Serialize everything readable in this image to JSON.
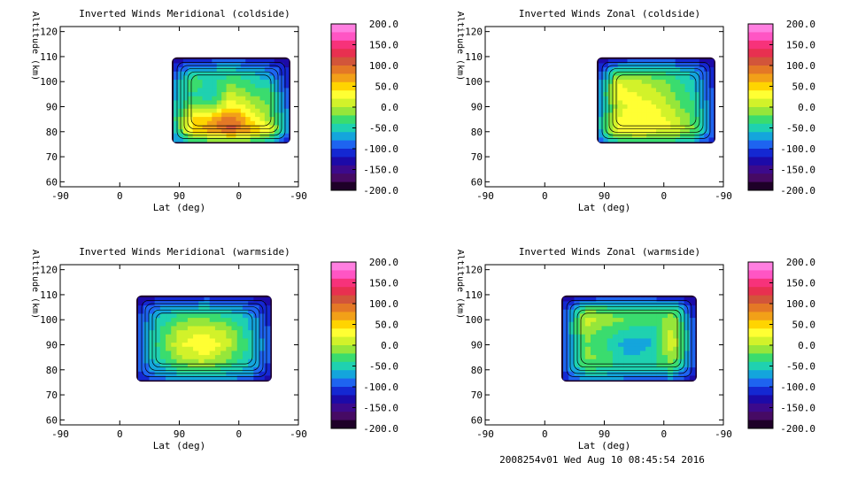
{
  "footer_text": "2008254v01 Wed Aug 10 08:45:54 2016",
  "colorbar": {
    "tick_labels": [
      "200.0",
      "150.0",
      "100.0",
      "50.0",
      "0.0",
      "-50.0",
      "-100.0",
      "-150.0",
      "-200.0"
    ],
    "tick_values": [
      200,
      150,
      100,
      50,
      0,
      -50,
      -100,
      -150,
      -200
    ],
    "range": [
      -200,
      200
    ],
    "colors_top_to_bottom": [
      "#ff7fe0",
      "#ff55c4",
      "#f7327a",
      "#e83050",
      "#d2553a",
      "#e47826",
      "#f2a018",
      "#ffd400",
      "#ffff33",
      "#d2f22a",
      "#96e63a",
      "#3adc6e",
      "#1fd1b0",
      "#14a5dc",
      "#1e64f0",
      "#1428d2",
      "#1c0aa8",
      "#3c0a8c",
      "#460a64",
      "#1e0028"
    ]
  },
  "chart_data": [
    {
      "type": "heatmap",
      "title": "Inverted Winds Meridional (coldside)",
      "xlabel": "Lat (deg)",
      "ylabel": "Altitude (km)",
      "x_tick_labels": [
        "-90",
        "0",
        "90",
        "0",
        "-90"
      ],
      "y_tick_labels": [
        "60",
        "70",
        "80",
        "90",
        "100",
        "110",
        "120"
      ],
      "ylim": [
        58,
        122
      ],
      "data_extent": {
        "x": [
          128,
          178
        ],
        "y": [
          76,
          109
        ]
      },
      "field": [
        [
          -140,
          -120,
          -110,
          -100,
          -110,
          -120,
          -140
        ],
        [
          -100,
          -60,
          -55,
          -50,
          -60,
          -80,
          -120
        ],
        [
          -80,
          -20,
          -50,
          -20,
          -40,
          -60,
          -110
        ],
        [
          -70,
          -40,
          -60,
          10,
          -20,
          -30,
          -100
        ],
        [
          -60,
          -10,
          -20,
          40,
          10,
          -20,
          -90
        ],
        [
          -50,
          40,
          60,
          100,
          40,
          -10,
          -80
        ],
        [
          -60,
          50,
          80,
          110,
          70,
          30,
          -90
        ],
        [
          -90,
          -40,
          -40,
          -30,
          -40,
          -60,
          -120
        ]
      ]
    },
    {
      "type": "heatmap",
      "title": "Inverted Winds Zonal (coldside)",
      "xlabel": "Lat (deg)",
      "ylabel": "Altitude (km)",
      "x_tick_labels": [
        "-90",
        "0",
        "90",
        "0",
        "-90"
      ],
      "y_tick_labels": [
        "60",
        "70",
        "80",
        "90",
        "100",
        "110",
        "120"
      ],
      "ylim": [
        58,
        122
      ],
      "data_extent": {
        "x": [
          128,
          178
        ],
        "y": [
          76,
          109
        ]
      },
      "field": [
        [
          -140,
          -120,
          -110,
          -110,
          -110,
          -120,
          -140
        ],
        [
          -110,
          -40,
          -30,
          -40,
          -50,
          -70,
          -120
        ],
        [
          -90,
          20,
          10,
          -10,
          -30,
          -60,
          -110
        ],
        [
          -80,
          30,
          20,
          10,
          -20,
          -50,
          -100
        ],
        [
          -80,
          10,
          30,
          20,
          -10,
          -40,
          -100
        ],
        [
          -70,
          20,
          40,
          30,
          10,
          -30,
          -90
        ],
        [
          -70,
          30,
          40,
          30,
          20,
          -20,
          -90
        ],
        [
          -100,
          -50,
          -40,
          -40,
          -50,
          -70,
          -120
        ]
      ]
    },
    {
      "type": "heatmap",
      "title": "Inverted Winds Meridional (warmside)",
      "xlabel": "Lat (deg)",
      "ylabel": "Altitude (km)",
      "x_tick_labels": [
        "-90",
        "0",
        "90",
        "0",
        "-90"
      ],
      "y_tick_labels": [
        "60",
        "70",
        "80",
        "90",
        "100",
        "110",
        "120"
      ],
      "ylim": [
        58,
        122
      ],
      "data_extent": {
        "x": [
          88,
          157
        ],
        "y": [
          76,
          109
        ]
      },
      "field": [
        [
          -140,
          -120,
          -120,
          -110,
          -110,
          -120,
          -140
        ],
        [
          -110,
          -70,
          -60,
          -50,
          -60,
          -80,
          -120
        ],
        [
          -100,
          -50,
          -20,
          -10,
          -30,
          -60,
          -110
        ],
        [
          -90,
          -40,
          10,
          20,
          0,
          -50,
          -100
        ],
        [
          -90,
          -30,
          20,
          40,
          10,
          -40,
          -100
        ],
        [
          -90,
          -40,
          0,
          20,
          -10,
          -50,
          -100
        ],
        [
          -100,
          -60,
          -30,
          -20,
          -40,
          -60,
          -110
        ],
        [
          -120,
          -90,
          -80,
          -80,
          -80,
          -90,
          -130
        ]
      ]
    },
    {
      "type": "heatmap",
      "title": "Inverted Winds Zonal (warmside)",
      "xlabel": "Lat (deg)",
      "ylabel": "Altitude (km)",
      "x_tick_labels": [
        "-90",
        "0",
        "90",
        "0",
        "-90"
      ],
      "y_tick_labels": [
        "60",
        "70",
        "80",
        "90",
        "100",
        "110",
        "120"
      ],
      "ylim": [
        58,
        122
      ],
      "data_extent": {
        "x": [
          88,
          157
        ],
        "y": [
          76,
          109
        ]
      },
      "field": [
        [
          -140,
          -120,
          -110,
          -110,
          -110,
          -120,
          -140
        ],
        [
          -110,
          -20,
          -30,
          -40,
          -40,
          -30,
          -120
        ],
        [
          -100,
          10,
          -10,
          -20,
          -30,
          0,
          -110
        ],
        [
          -90,
          -10,
          -30,
          -50,
          -60,
          10,
          -100
        ],
        [
          -90,
          -20,
          -40,
          -80,
          -60,
          20,
          -100
        ],
        [
          -90,
          -10,
          -30,
          -60,
          -50,
          0,
          -100
        ],
        [
          -100,
          -30,
          -40,
          -50,
          -50,
          -30,
          -110
        ],
        [
          -120,
          -80,
          -80,
          -90,
          -90,
          -90,
          -130
        ]
      ]
    }
  ]
}
